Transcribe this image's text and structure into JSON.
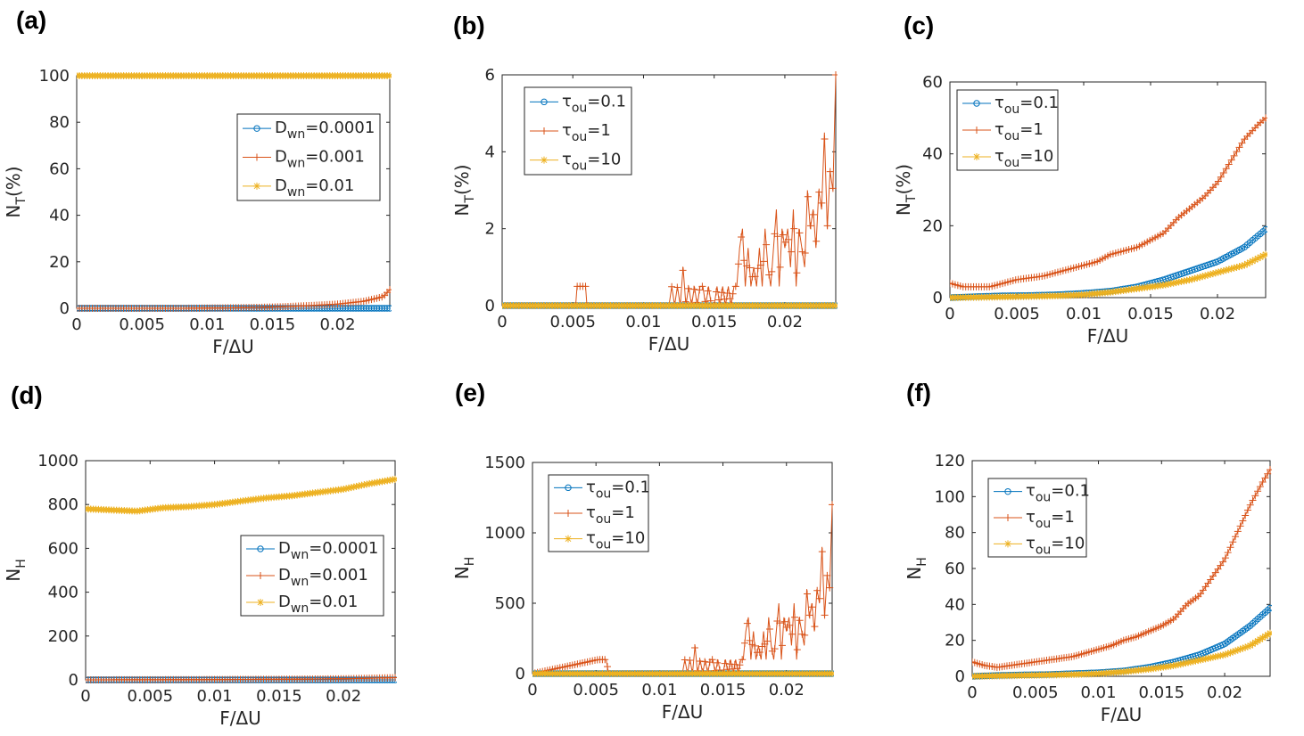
{
  "chart_data": [
    {
      "panel": "(a)",
      "type": "line",
      "xlabel": "F/ΔU",
      "ylabel": "N",
      "ylabel_sub": "T",
      "ylabel_suffix": "(%)",
      "xlim": [
        0,
        0.024
      ],
      "ylim": [
        0,
        100
      ],
      "xticks": [
        0,
        0.005,
        0.01,
        0.015,
        0.02
      ],
      "xtick_labels": [
        "0",
        "0.005",
        "0.01",
        "0.015",
        "0.02"
      ],
      "yticks": [
        0,
        20,
        40,
        60,
        80,
        100
      ],
      "ytick_labels": [
        "0",
        "20",
        "40",
        "60",
        "80",
        "100"
      ],
      "legend_position": "right-middle",
      "series": [
        {
          "name_main": "D",
          "name_sub": "wn",
          "name_tail": "=0.0001",
          "color": "#0072BD",
          "marker": "circle",
          "x": [
            0,
            0.004,
            0.008,
            0.012,
            0.016,
            0.02,
            0.024
          ],
          "y": [
            0,
            0,
            0,
            0,
            0,
            0,
            0
          ]
        },
        {
          "name_main": "D",
          "name_sub": "wn",
          "name_tail": "=0.001",
          "color": "#D95319",
          "marker": "plus",
          "x": [
            0,
            0.004,
            0.008,
            0.012,
            0.014,
            0.016,
            0.018,
            0.02,
            0.022,
            0.0235,
            0.024
          ],
          "y": [
            0,
            0,
            0,
            0.2,
            0.4,
            0.7,
            1.2,
            1.8,
            3.0,
            5.0,
            8.0
          ]
        },
        {
          "name_main": "D",
          "name_sub": "wn",
          "name_tail": "=0.01",
          "color": "#EDB120",
          "marker": "star",
          "x": [
            0,
            0.012,
            0.024
          ],
          "y": [
            100,
            100,
            100
          ]
        }
      ]
    },
    {
      "panel": "(b)",
      "type": "line",
      "xlabel": "F/ΔU",
      "ylabel": "N",
      "ylabel_sub": "T",
      "ylabel_suffix": "(%)",
      "xlim": [
        0,
        0.0236
      ],
      "ylim": [
        0,
        6
      ],
      "xticks": [
        0,
        0.005,
        0.01,
        0.015,
        0.02
      ],
      "xtick_labels": [
        "0",
        "0.005",
        "0.01",
        "0.015",
        "0.02"
      ],
      "yticks": [
        0,
        2,
        4,
        6
      ],
      "ytick_labels": [
        "0",
        "2",
        "4",
        "6"
      ],
      "legend_position": "top-left",
      "series": [
        {
          "name_main": "τ",
          "name_sub": "ou",
          "name_tail": "=0.1",
          "color": "#0072BD",
          "marker": "circle",
          "x": [
            0,
            0.012,
            0.0236
          ],
          "y": [
            0,
            0,
            0
          ]
        },
        {
          "name_main": "τ",
          "name_sub": "ou",
          "name_tail": "=1",
          "color": "#D95319",
          "marker": "plus",
          "x": [
            0,
            0.0052,
            0.0053,
            0.0055,
            0.0057,
            0.0059,
            0.006,
            0.0118,
            0.012,
            0.0122,
            0.0124,
            0.0126,
            0.0128,
            0.013,
            0.0132,
            0.0134,
            0.0136,
            0.0138,
            0.014,
            0.0142,
            0.0144,
            0.0146,
            0.0148,
            0.015,
            0.0152,
            0.0154,
            0.0156,
            0.0158,
            0.016,
            0.0162,
            0.0164,
            0.0166,
            0.0168,
            0.017,
            0.0172,
            0.0174,
            0.0176,
            0.0178,
            0.018,
            0.0182,
            0.0184,
            0.0186,
            0.0188,
            0.019,
            0.0192,
            0.0194,
            0.0196,
            0.0198,
            0.02,
            0.0202,
            0.0204,
            0.0206,
            0.0208,
            0.021,
            0.0212,
            0.0214,
            0.0216,
            0.0218,
            0.022,
            0.0222,
            0.0224,
            0.0226,
            0.0228,
            0.023,
            0.0232,
            0.0234,
            0.0236
          ],
          "y": [
            0,
            0,
            0.5,
            0.5,
            0.5,
            0.5,
            0,
            0,
            0.5,
            0,
            0.5,
            0,
            1.0,
            0,
            0.5,
            0,
            0.5,
            0,
            0.5,
            0.5,
            0,
            0.5,
            0,
            0,
            0.5,
            0,
            0.5,
            0,
            0.5,
            0,
            0.5,
            0.5,
            1.5,
            2.0,
            0.5,
            1.5,
            0.5,
            1.0,
            0.5,
            1.5,
            0.5,
            2.0,
            1.0,
            0.5,
            1.5,
            2.5,
            0.5,
            2.0,
            1.5,
            2.0,
            1.0,
            2.5,
            0.5,
            2.0,
            1.5,
            1.0,
            3.0,
            2.0,
            2.5,
            1.5,
            3.0,
            2.5,
            4.5,
            2.0,
            3.5,
            3.0,
            6.0
          ]
        },
        {
          "name_main": "τ",
          "name_sub": "ou",
          "name_tail": "=10",
          "color": "#EDB120",
          "marker": "star",
          "x": [
            0,
            0.012,
            0.0236
          ],
          "y": [
            0,
            0,
            0
          ]
        }
      ]
    },
    {
      "panel": "(c)",
      "type": "line",
      "xlabel": "F/ΔU",
      "ylabel": "N",
      "ylabel_sub": "T",
      "ylabel_suffix": "(%)",
      "xlim": [
        0,
        0.0236
      ],
      "ylim": [
        0,
        60
      ],
      "xticks": [
        0,
        0.005,
        0.01,
        0.015,
        0.02
      ],
      "xtick_labels": [
        "0",
        "0.005",
        "0.01",
        "0.015",
        "0.02"
      ],
      "yticks": [
        0,
        20,
        40,
        60
      ],
      "ytick_labels": [
        "0",
        "20",
        "40",
        "60"
      ],
      "legend_position": "top-left",
      "series": [
        {
          "name_main": "τ",
          "name_sub": "ou",
          "name_tail": "=0.1",
          "color": "#0072BD",
          "marker": "circle",
          "x": [
            0,
            0.002,
            0.004,
            0.006,
            0.008,
            0.01,
            0.012,
            0.014,
            0.016,
            0.018,
            0.02,
            0.022,
            0.0236
          ],
          "y": [
            0,
            0.3,
            0.5,
            0.6,
            0.8,
            1.2,
            1.8,
            3.0,
            5.0,
            7.5,
            10,
            14,
            19
          ]
        },
        {
          "name_main": "τ",
          "name_sub": "ou",
          "name_tail": "=1",
          "color": "#D95319",
          "marker": "plus",
          "x": [
            0,
            0.001,
            0.002,
            0.003,
            0.004,
            0.005,
            0.006,
            0.007,
            0.008,
            0.009,
            0.01,
            0.011,
            0.012,
            0.013,
            0.014,
            0.015,
            0.016,
            0.017,
            0.018,
            0.019,
            0.02,
            0.021,
            0.022,
            0.023,
            0.0236
          ],
          "y": [
            4,
            3,
            3,
            3,
            4,
            5,
            5.5,
            6,
            7,
            8,
            9,
            10,
            12,
            13,
            14,
            16,
            18,
            22,
            25,
            28,
            32,
            38,
            44,
            48,
            50
          ]
        },
        {
          "name_main": "τ",
          "name_sub": "ou",
          "name_tail": "=10",
          "color": "#EDB120",
          "marker": "star",
          "x": [
            0,
            0.004,
            0.008,
            0.01,
            0.012,
            0.014,
            0.016,
            0.018,
            0.02,
            0.022,
            0.0236
          ],
          "y": [
            0,
            0.2,
            0.5,
            0.8,
            1.5,
            2.5,
            3.5,
            5,
            7,
            9,
            12
          ]
        }
      ]
    },
    {
      "panel": "(d)",
      "type": "line",
      "xlabel": "F/ΔU",
      "ylabel": "N",
      "ylabel_sub": "H",
      "ylabel_suffix": "",
      "xlim": [
        0,
        0.024
      ],
      "ylim": [
        0,
        1000
      ],
      "xticks": [
        0,
        0.005,
        0.01,
        0.015,
        0.02
      ],
      "xtick_labels": [
        "0",
        "0.005",
        "0.01",
        "0.015",
        "0.02"
      ],
      "yticks": [
        0,
        200,
        400,
        600,
        800,
        1000
      ],
      "ytick_labels": [
        "0",
        "200",
        "400",
        "600",
        "800",
        "1000"
      ],
      "legend_position": "right-middle",
      "series": [
        {
          "name_main": "D",
          "name_sub": "wn",
          "name_tail": "=0.0001",
          "color": "#0072BD",
          "marker": "circle",
          "x": [
            0,
            0.012,
            0.024
          ],
          "y": [
            0,
            0,
            0
          ]
        },
        {
          "name_main": "D",
          "name_sub": "wn",
          "name_tail": "=0.001",
          "color": "#D95319",
          "marker": "plus",
          "x": [
            0,
            0.008,
            0.016,
            0.02,
            0.024
          ],
          "y": [
            0,
            1,
            3,
            5,
            10
          ]
        },
        {
          "name_main": "D",
          "name_sub": "wn",
          "name_tail": "=0.01",
          "color": "#EDB120",
          "marker": "star",
          "x": [
            0,
            0.002,
            0.004,
            0.006,
            0.008,
            0.01,
            0.012,
            0.014,
            0.016,
            0.018,
            0.02,
            0.022,
            0.024
          ],
          "y": [
            780,
            775,
            770,
            785,
            790,
            800,
            815,
            830,
            840,
            855,
            870,
            895,
            915
          ]
        }
      ]
    },
    {
      "panel": "(e)",
      "type": "line",
      "xlabel": "F/ΔU",
      "ylabel": "N",
      "ylabel_sub": "H",
      "ylabel_suffix": "",
      "xlim": [
        0,
        0.0236
      ],
      "ylim": [
        0,
        1500
      ],
      "xticks": [
        0,
        0.005,
        0.01,
        0.015,
        0.02
      ],
      "xtick_labels": [
        "0",
        "0.005",
        "0.01",
        "0.015",
        "0.02"
      ],
      "yticks": [
        0,
        500,
        1000,
        1500
      ],
      "ytick_labels": [
        "0",
        "500",
        "1000",
        "1500"
      ],
      "legend_position": "top-left",
      "series": [
        {
          "name_main": "τ",
          "name_sub": "ou",
          "name_tail": "=0.1",
          "color": "#0072BD",
          "marker": "circle",
          "x": [
            0,
            0.012,
            0.0236
          ],
          "y": [
            0,
            0,
            0
          ]
        },
        {
          "name_main": "τ",
          "name_sub": "ou",
          "name_tail": "=1",
          "color": "#D95319",
          "marker": "plus",
          "x": [
            0,
            0.0052,
            0.0054,
            0.0056,
            0.0058,
            0.006,
            0.0118,
            0.012,
            0.0122,
            0.0124,
            0.0126,
            0.0128,
            0.013,
            0.0132,
            0.0134,
            0.0136,
            0.0138,
            0.014,
            0.0142,
            0.0144,
            0.0146,
            0.0148,
            0.015,
            0.0152,
            0.0154,
            0.0156,
            0.0158,
            0.016,
            0.0162,
            0.0164,
            0.0166,
            0.0168,
            0.017,
            0.0172,
            0.0174,
            0.0176,
            0.0178,
            0.018,
            0.0182,
            0.0184,
            0.0186,
            0.0188,
            0.019,
            0.0192,
            0.0194,
            0.0196,
            0.0198,
            0.02,
            0.0202,
            0.0204,
            0.0206,
            0.0208,
            0.021,
            0.0212,
            0.0214,
            0.0216,
            0.0218,
            0.022,
            0.0222,
            0.0224,
            0.0226,
            0.0228,
            0.023,
            0.0232,
            0.0234,
            0.0236
          ],
          "y": [
            0,
            100,
            100,
            100,
            100,
            0,
            0,
            100,
            0,
            100,
            0,
            200,
            0,
            100,
            0,
            100,
            0,
            100,
            100,
            0,
            100,
            0,
            0,
            100,
            0,
            100,
            0,
            100,
            0,
            100,
            100,
            300,
            400,
            100,
            300,
            100,
            200,
            100,
            300,
            100,
            400,
            200,
            100,
            300,
            500,
            100,
            400,
            300,
            400,
            200,
            500,
            100,
            400,
            300,
            200,
            600,
            400,
            500,
            300,
            600,
            500,
            900,
            400,
            700,
            600,
            1200
          ]
        },
        {
          "name_main": "τ",
          "name_sub": "ou",
          "name_tail": "=10",
          "color": "#EDB120",
          "marker": "star",
          "x": [
            0,
            0.012,
            0.0236
          ],
          "y": [
            0,
            0,
            0
          ]
        }
      ]
    },
    {
      "panel": "(f)",
      "type": "line",
      "xlabel": "F/ΔU",
      "ylabel": "N",
      "ylabel_sub": "H",
      "ylabel_suffix": "",
      "xlim": [
        0,
        0.0236
      ],
      "ylim": [
        0,
        120
      ],
      "xticks": [
        0,
        0.005,
        0.01,
        0.015,
        0.02
      ],
      "xtick_labels": [
        "0",
        "0.005",
        "0.01",
        "0.015",
        "0.02"
      ],
      "yticks": [
        0,
        20,
        40,
        60,
        80,
        100,
        120
      ],
      "ytick_labels": [
        "0",
        "20",
        "40",
        "60",
        "80",
        "100",
        "120"
      ],
      "legend_position": "top-left",
      "series": [
        {
          "name_main": "τ",
          "name_sub": "ou",
          "name_tail": "=0.1",
          "color": "#0072BD",
          "marker": "circle",
          "x": [
            0,
            0.002,
            0.004,
            0.006,
            0.008,
            0.01,
            0.012,
            0.014,
            0.016,
            0.018,
            0.02,
            0.022,
            0.0236
          ],
          "y": [
            0,
            0.5,
            0.8,
            1,
            1.5,
            2,
            3,
            5,
            8,
            12,
            18,
            28,
            38
          ]
        },
        {
          "name_main": "τ",
          "name_sub": "ou",
          "name_tail": "=1",
          "color": "#D95319",
          "marker": "plus",
          "x": [
            0,
            0.001,
            0.002,
            0.003,
            0.004,
            0.005,
            0.006,
            0.007,
            0.008,
            0.009,
            0.01,
            0.011,
            0.012,
            0.013,
            0.014,
            0.015,
            0.016,
            0.017,
            0.018,
            0.019,
            0.02,
            0.021,
            0.022,
            0.023,
            0.0236
          ],
          "y": [
            8,
            6,
            5,
            6,
            7,
            8,
            9,
            10,
            11,
            13,
            15,
            17,
            20,
            22,
            25,
            28,
            32,
            40,
            45,
            55,
            65,
            80,
            95,
            108,
            115
          ]
        },
        {
          "name_main": "τ",
          "name_sub": "ou",
          "name_tail": "=10",
          "color": "#EDB120",
          "marker": "star",
          "x": [
            0,
            0.004,
            0.008,
            0.01,
            0.012,
            0.014,
            0.016,
            0.018,
            0.02,
            0.022,
            0.0236
          ],
          "y": [
            0,
            0.5,
            1,
            1.5,
            2.5,
            4,
            6,
            9,
            12,
            17,
            24
          ]
        }
      ]
    }
  ]
}
